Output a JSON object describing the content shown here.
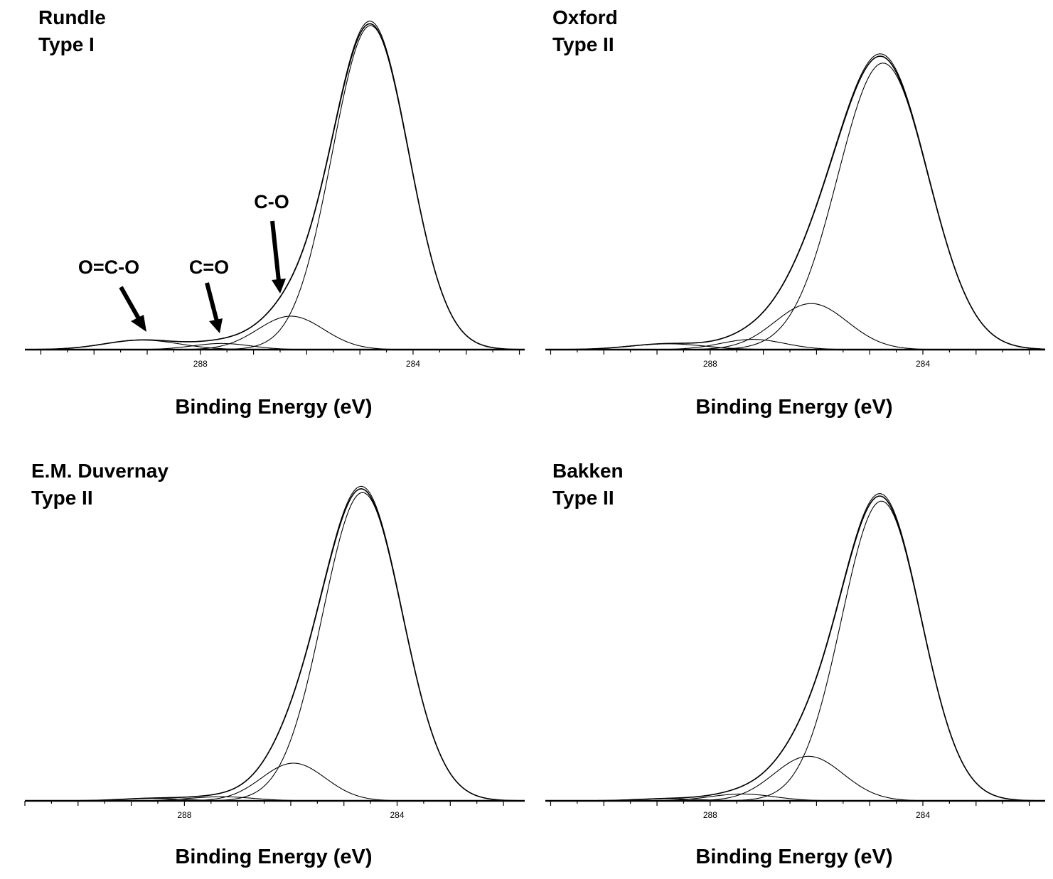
{
  "chart_data": [
    {
      "type": "line",
      "title": "Rundle",
      "subtitle": "Type I",
      "xlabel": "Binding Energy (eV)",
      "ylabel": "",
      "x_reversed": true,
      "xlim": [
        291.3,
        281.9
      ],
      "xticks_labeled": [
        "288",
        "284"
      ],
      "grid": false,
      "ymax": 1.0,
      "components": [
        {
          "center": 284.8,
          "height": 0.95,
          "sigma": 0.72
        },
        {
          "center": 286.3,
          "height": 0.098,
          "sigma": 0.62
        },
        {
          "center": 287.6,
          "height": 0.018,
          "sigma": 0.55
        },
        {
          "center": 289.1,
          "height": 0.028,
          "sigma": 0.7
        }
      ],
      "annotations": [
        {
          "text": "O=C-O",
          "points_to": 289.1
        },
        {
          "text": "C=O",
          "points_to": 287.6
        },
        {
          "text": "C-O",
          "points_to": 286.3
        }
      ]
    },
    {
      "type": "line",
      "title": "Oxford",
      "subtitle": "Type II",
      "xlabel": "Binding Energy (eV)",
      "ylabel": "",
      "x_reversed": true,
      "xlim": [
        291.1,
        281.7
      ],
      "xticks_labeled": [
        "288",
        "284"
      ],
      "grid": false,
      "ymax": 1.0,
      "components": [
        {
          "center": 284.75,
          "height": 0.84,
          "sigma": 0.85
        },
        {
          "center": 286.1,
          "height": 0.135,
          "sigma": 0.68
        },
        {
          "center": 287.2,
          "height": 0.03,
          "sigma": 0.6
        },
        {
          "center": 288.8,
          "height": 0.017,
          "sigma": 0.7
        }
      ],
      "annotations": []
    },
    {
      "type": "line",
      "title": "E.M. Duvernay",
      "subtitle": "Type II",
      "xlabel": "Binding Energy (eV)",
      "ylabel": "",
      "x_reversed": true,
      "xlim": [
        291.0,
        281.6
      ],
      "xticks_labeled": [
        "288",
        "284"
      ],
      "grid": false,
      "ymax": 1.0,
      "components": [
        {
          "center": 284.65,
          "height": 0.9,
          "sigma": 0.75
        },
        {
          "center": 285.95,
          "height": 0.11,
          "sigma": 0.6
        },
        {
          "center": 287.3,
          "height": 0.012,
          "sigma": 0.6
        },
        {
          "center": 288.6,
          "height": 0.007,
          "sigma": 0.6
        }
      ],
      "annotations": []
    },
    {
      "type": "line",
      "title": "Bakken",
      "subtitle": "Type II",
      "xlabel": "Binding Energy (eV)",
      "ylabel": "",
      "x_reversed": true,
      "xlim": [
        291.1,
        281.7
      ],
      "xticks_labeled": [
        "288",
        "284"
      ],
      "grid": false,
      "ymax": 1.0,
      "components": [
        {
          "center": 284.78,
          "height": 0.875,
          "sigma": 0.75
        },
        {
          "center": 286.15,
          "height": 0.13,
          "sigma": 0.65
        },
        {
          "center": 287.4,
          "height": 0.02,
          "sigma": 0.6
        },
        {
          "center": 288.8,
          "height": 0.006,
          "sigma": 0.6
        }
      ],
      "annotations": []
    }
  ]
}
